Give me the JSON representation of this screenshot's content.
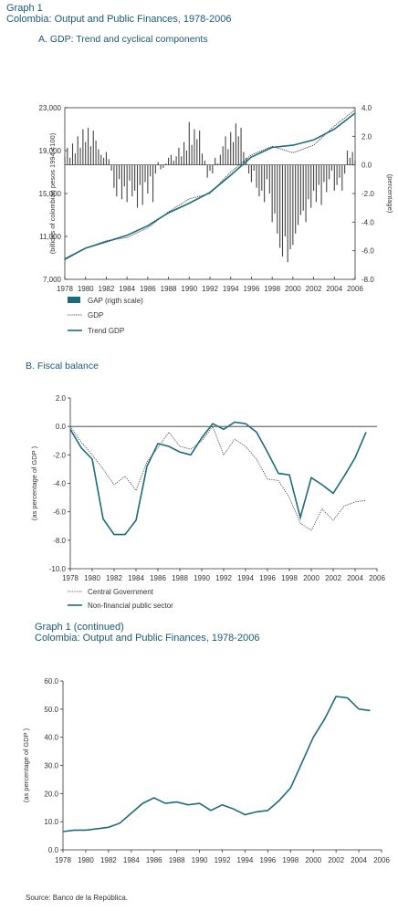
{
  "header": {
    "graph1_label": "Graph 1",
    "graph1_title": "Colombia: Output and Public Finances, 1978-2006",
    "panelA_title": "A.  GDP: Trend and cyclical components",
    "panelB_title": "B.  Fiscal balance",
    "graph1c_label": "Graph 1 (continued)",
    "graph1c_title": "Colombia: Output and Public Finances, 1978-2006"
  },
  "source": "Source: Banco de la República.",
  "colors": {
    "teal": "#1d6b7a",
    "bar": "#444444",
    "grid": "#333333",
    "dotted": "#555555"
  },
  "chart_data": [
    {
      "type": "line",
      "title": "A.  GDP: Trend and cyclical components",
      "ylabel": "(billions of colombian pesos 1994 =100)",
      "y2label": "(percentage)",
      "ylim": [
        7000,
        23000
      ],
      "y2lim": [
        -8,
        4
      ],
      "yticks": [
        "7,000",
        "11,000",
        "15,000",
        "19,000",
        "23,000"
      ],
      "y2ticks": [
        "-8.0",
        "-6.0",
        "-4.0",
        "-2.0",
        "0.0",
        "2.0",
        "4.0"
      ],
      "x": [
        1978,
        1980,
        1982,
        1984,
        1986,
        1988,
        1990,
        1992,
        1994,
        1996,
        1998,
        2000,
        2002,
        2004,
        2006
      ],
      "xticks": [
        "1978",
        "1980",
        "1982",
        "1984",
        "1986",
        "1988",
        "1990",
        "1992",
        "1994",
        "1996",
        "1998",
        "2000",
        "2002",
        "2004",
        "2006"
      ],
      "legend": [
        "GAP (rigth scale)",
        "GDP",
        "Trend GDP"
      ],
      "series": [
        {
          "name": "Trend GDP",
          "style": "solid",
          "values": [
            8900,
            9900,
            10500,
            11100,
            12000,
            13200,
            14100,
            15100,
            16700,
            18400,
            19300,
            19500,
            20000,
            21000,
            22500
          ]
        },
        {
          "name": "GDP",
          "style": "dotted",
          "values": [
            8800,
            9900,
            10600,
            10900,
            11800,
            13300,
            14500,
            15000,
            17000,
            18600,
            19400,
            18800,
            19500,
            21300,
            22800
          ]
        },
        {
          "name": "GAP (rigth scale)",
          "style": "bar",
          "x": [
            1978.0,
            1978.25,
            1978.5,
            1978.75,
            1979.0,
            1979.25,
            1979.5,
            1979.75,
            1980.0,
            1980.25,
            1980.5,
            1980.75,
            1981.0,
            1981.25,
            1981.5,
            1981.75,
            1982.0,
            1982.25,
            1982.5,
            1982.75,
            1983.0,
            1983.25,
            1983.5,
            1983.75,
            1984.0,
            1984.25,
            1984.5,
            1984.75,
            1985.0,
            1985.25,
            1985.5,
            1985.75,
            1986.0,
            1986.25,
            1986.5,
            1986.75,
            1987.0,
            1987.25,
            1987.5,
            1987.75,
            1988.0,
            1988.25,
            1988.5,
            1988.75,
            1989.0,
            1989.25,
            1989.5,
            1989.75,
            1990.0,
            1990.25,
            1990.5,
            1990.75,
            1991.0,
            1991.25,
            1991.5,
            1991.75,
            1992.0,
            1992.25,
            1992.5,
            1992.75,
            1993.0,
            1993.25,
            1993.5,
            1993.75,
            1994.0,
            1994.25,
            1994.5,
            1994.75,
            1995.0,
            1995.25,
            1995.5,
            1995.75,
            1996.0,
            1996.25,
            1996.5,
            1996.75,
            1997.0,
            1997.25,
            1997.5,
            1997.75,
            1998.0,
            1998.25,
            1998.5,
            1998.75,
            1999.0,
            1999.25,
            1999.5,
            1999.75,
            2000.0,
            2000.25,
            2000.5,
            2000.75,
            2001.0,
            2001.25,
            2001.5,
            2001.75,
            2002.0,
            2002.25,
            2002.5,
            2002.75,
            2003.0,
            2003.25,
            2003.5,
            2003.75,
            2004.0,
            2004.25,
            2004.5,
            2004.75,
            2005.0,
            2005.25,
            2005.5,
            2005.75,
            2006.0
          ],
          "values": [
            0.6,
            1.2,
            0.5,
            1.5,
            0.8,
            2.0,
            1.2,
            2.5,
            1.6,
            2.6,
            1.3,
            2.4,
            1.7,
            1.1,
            0.7,
            0.5,
            0.9,
            0.4,
            -0.4,
            -1.6,
            -2.2,
            -1.0,
            -2.4,
            -1.5,
            -2.6,
            -1.1,
            -2.2,
            -1.8,
            -3.0,
            -1.4,
            -2.8,
            -1.2,
            -2.0,
            -0.8,
            -2.6,
            -0.6,
            0.2,
            -0.3,
            -0.2,
            0.1,
            0.5,
            0.7,
            0.3,
            0.6,
            1.2,
            0.6,
            1.6,
            1.0,
            3.0,
            1.4,
            2.5,
            1.8,
            2.4,
            0.8,
            0.3,
            -0.9,
            -0.4,
            -0.6,
            0.5,
            0.1,
            0.7,
            1.3,
            2.0,
            1.1,
            2.3,
            1.6,
            2.9,
            2.0,
            2.6,
            0.9,
            0.5,
            -0.6,
            -1.2,
            -0.4,
            -1.6,
            -2.2,
            -1.8,
            -2.6,
            -1.0,
            -2.0,
            -4.0,
            -3.4,
            -4.8,
            -5.8,
            -6.4,
            -5.0,
            -6.8,
            -5.9,
            -5.6,
            -4.8,
            -4.2,
            -3.5,
            -3.2,
            -4.0,
            -2.4,
            -3.0,
            -1.8,
            -2.6,
            -1.4,
            -2.8,
            -1.2,
            -1.9,
            -1.0,
            -0.4,
            -1.8,
            -1.4,
            -0.9,
            -1.8,
            -0.6,
            1.0,
            0.5,
            0.9,
            0.3
          ]
        }
      ]
    },
    {
      "type": "line",
      "title": "B.  Fiscal balance",
      "ylabel": "(as percentage of GDP )",
      "ylim": [
        -10,
        2
      ],
      "yticks": [
        "-10.0",
        "-8.0",
        "-6.0",
        "-4.0",
        "-2.0",
        "0.0",
        "2.0"
      ],
      "x": [
        1978,
        1979,
        1980,
        1981,
        1982,
        1983,
        1984,
        1985,
        1986,
        1987,
        1988,
        1989,
        1990,
        1991,
        1992,
        1993,
        1994,
        1995,
        1996,
        1997,
        1998,
        1999,
        2000,
        2001,
        2002,
        2003,
        2004,
        2005,
        2006
      ],
      "xticks": [
        "1978",
        "1980",
        "1982",
        "1984",
        "1986",
        "1988",
        "1990",
        "1992",
        "1994",
        "1996",
        "1998",
        "2000",
        "2002",
        "2004",
        "2006"
      ],
      "legend": [
        "Central Government",
        "Non-financial  public sector"
      ],
      "series": [
        {
          "name": "Central Government",
          "style": "dotted",
          "values": [
            0.0,
            -1.1,
            -2.0,
            -3.0,
            -4.1,
            -3.5,
            -4.5,
            -2.5,
            -1.5,
            -0.4,
            -1.4,
            -1.6,
            -1.0,
            0.0,
            -2.0,
            -0.9,
            -1.4,
            -2.3,
            -3.7,
            -3.8,
            -5.0,
            -6.8,
            -7.3,
            -5.8,
            -6.6,
            -5.6,
            -5.3,
            -5.2,
            null
          ]
        },
        {
          "name": "Non-financial  public sector",
          "style": "solid",
          "values": [
            -0.2,
            -1.5,
            -2.3,
            -6.5,
            -7.6,
            -7.6,
            -6.6,
            -2.8,
            -1.2,
            -1.4,
            -1.8,
            -2.0,
            -0.8,
            0.2,
            -0.2,
            0.3,
            0.2,
            -0.4,
            -1.8,
            -3.3,
            -3.4,
            -6.4,
            -3.6,
            -4.1,
            -4.7,
            -3.5,
            -2.2,
            -0.4,
            null
          ]
        }
      ]
    },
    {
      "type": "line",
      "title": "",
      "ylabel": "(as percentage of GDP )",
      "ylim": [
        0,
        60
      ],
      "yticks": [
        "0.0",
        "10.0",
        "20.0",
        "30.0",
        "40.0",
        "50.0",
        "60.0"
      ],
      "x": [
        1978,
        1979,
        1980,
        1981,
        1982,
        1983,
        1984,
        1985,
        1986,
        1987,
        1988,
        1989,
        1990,
        1991,
        1992,
        1993,
        1994,
        1995,
        1996,
        1997,
        1998,
        1999,
        2000,
        2001,
        2002,
        2003,
        2004,
        2005,
        2006
      ],
      "xticks": [
        "1978",
        "1980",
        "1982",
        "1984",
        "1986",
        "1988",
        "1990",
        "1992",
        "1994",
        "1996",
        "1998",
        "2000",
        "2002",
        "2004",
        "2006"
      ],
      "series": [
        {
          "name": "",
          "style": "solid",
          "values": [
            6.5,
            7.0,
            7.0,
            7.5,
            8.0,
            9.5,
            13.0,
            16.5,
            18.5,
            16.5,
            17.0,
            16.0,
            16.5,
            14.0,
            16.0,
            14.5,
            12.5,
            13.5,
            14.0,
            17.5,
            22.0,
            31.0,
            40.0,
            46.5,
            54.5,
            54.0,
            50.0,
            49.5,
            null
          ]
        }
      ]
    }
  ]
}
